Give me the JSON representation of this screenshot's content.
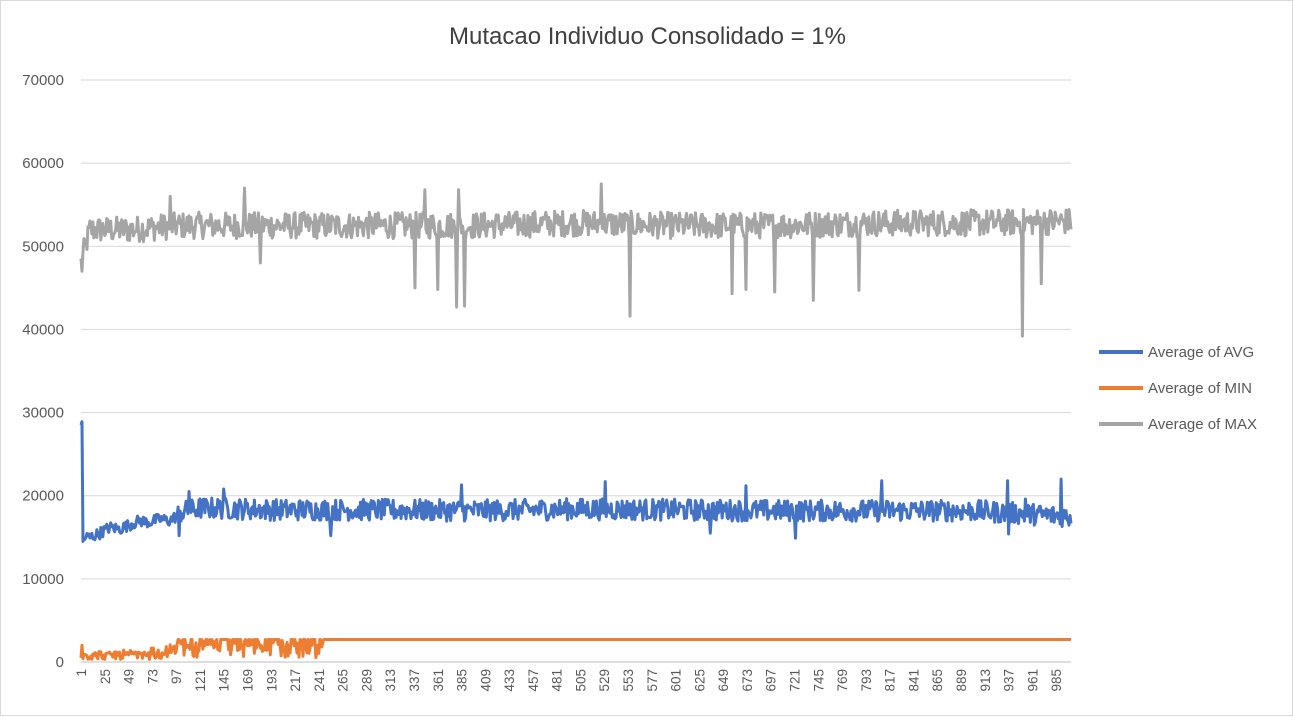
{
  "chart_data": {
    "type": "line",
    "title": "Mutacao Individuo Consolidado = 1%",
    "xlabel": "",
    "ylabel": "",
    "x_range": [
      1,
      1000
    ],
    "x_tick_labels": [
      "1",
      "25",
      "49",
      "73",
      "97",
      "121",
      "145",
      "169",
      "193",
      "217",
      "241",
      "265",
      "289",
      "313",
      "337",
      "361",
      "385",
      "409",
      "433",
      "457",
      "481",
      "505",
      "529",
      "553",
      "577",
      "601",
      "625",
      "649",
      "673",
      "697",
      "721",
      "745",
      "769",
      "793",
      "817",
      "841",
      "865",
      "889",
      "913",
      "937",
      "961",
      "985"
    ],
    "ylim": [
      0,
      70000
    ],
    "y_ticks": [
      0,
      10000,
      20000,
      30000,
      40000,
      50000,
      60000,
      70000
    ],
    "grid": "horizontal",
    "legend_position": "right",
    "series": [
      {
        "name": "Average of AVG",
        "color": "#4472C4",
        "points": [
          [
            1,
            15000
          ],
          [
            2,
            28500
          ],
          [
            3,
            14500
          ],
          [
            5,
            15000
          ],
          [
            10,
            15000
          ],
          [
            20,
            15500
          ],
          [
            30,
            16200
          ],
          [
            40,
            16000
          ],
          [
            50,
            16500
          ],
          [
            60,
            17000
          ],
          [
            70,
            16800
          ],
          [
            80,
            17200
          ],
          [
            90,
            17000
          ],
          [
            97,
            17500
          ],
          [
            100,
            18000
          ],
          [
            110,
            18200
          ],
          [
            120,
            18500
          ],
          [
            140,
            18500
          ],
          [
            200,
            18300
          ],
          [
            300,
            18300
          ],
          [
            400,
            18200
          ],
          [
            500,
            18400
          ],
          [
            600,
            18300
          ],
          [
            700,
            18200
          ],
          [
            800,
            18200
          ],
          [
            900,
            18200
          ],
          [
            1000,
            17500
          ]
        ],
        "spikes": [
          [
            1,
            28500
          ],
          [
            110,
            20500
          ],
          [
            145,
            20800
          ],
          [
            385,
            21300
          ],
          [
            530,
            21700
          ],
          [
            672,
            21200
          ],
          [
            809,
            21800
          ],
          [
            936,
            21800
          ],
          [
            954,
            19600
          ],
          [
            990,
            22000
          ]
        ],
        "dips": [
          [
            3,
            14500
          ],
          [
            100,
            15200
          ],
          [
            253,
            15200
          ],
          [
            636,
            15500
          ],
          [
            722,
            14900
          ],
          [
            937,
            15400
          ]
        ]
      },
      {
        "name": "Average of MIN",
        "color": "#ED7D31",
        "points": [
          [
            1,
            500
          ],
          [
            2,
            2500
          ],
          [
            5,
            800
          ],
          [
            20,
            800
          ],
          [
            40,
            900
          ],
          [
            60,
            1000
          ],
          [
            80,
            1200
          ],
          [
            100,
            1800
          ],
          [
            120,
            1900
          ],
          [
            140,
            2000
          ],
          [
            160,
            1900
          ],
          [
            180,
            2000
          ],
          [
            200,
            1900
          ],
          [
            220,
            2000
          ],
          [
            245,
            2000
          ],
          [
            246,
            2700
          ],
          [
            1000,
            2700
          ]
        ],
        "fluctuation_until": 245,
        "plateau": 2700
      },
      {
        "name": "Average of MAX",
        "color": "#A5A5A5",
        "points": [
          [
            1,
            48000
          ],
          [
            10,
            52000
          ],
          [
            50,
            52000
          ],
          [
            100,
            52500
          ],
          [
            200,
            52500
          ],
          [
            300,
            52500
          ],
          [
            400,
            52500
          ],
          [
            500,
            52800
          ],
          [
            600,
            52500
          ],
          [
            700,
            52500
          ],
          [
            800,
            52800
          ],
          [
            900,
            52800
          ],
          [
            1000,
            53000
          ]
        ],
        "spikes": [
          [
            91,
            56000
          ],
          [
            166,
            57000
          ],
          [
            348,
            56800
          ],
          [
            382,
            56800
          ],
          [
            526,
            57500
          ],
          [
            786,
            58000
          ],
          [
            970,
            58500
          ]
        ],
        "dips": [
          [
            2,
            47000
          ],
          [
            182,
            48000
          ],
          [
            338,
            45000
          ],
          [
            361,
            44800
          ],
          [
            380,
            42700
          ],
          [
            388,
            42800
          ],
          [
            555,
            41600
          ],
          [
            658,
            44300
          ],
          [
            672,
            44800
          ],
          [
            701,
            44500
          ],
          [
            740,
            43500
          ],
          [
            786,
            44700
          ],
          [
            951,
            39200
          ],
          [
            970,
            45500
          ]
        ]
      }
    ]
  }
}
